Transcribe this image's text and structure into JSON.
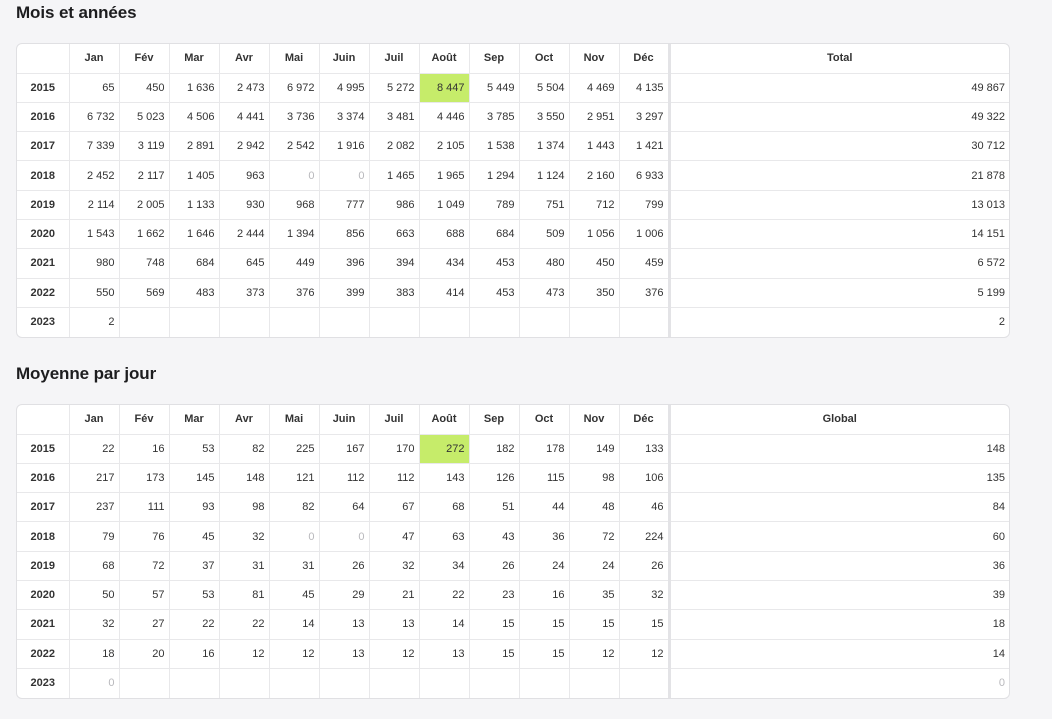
{
  "months": [
    "Jan",
    "Fév",
    "Mar",
    "Avr",
    "Mai",
    "Juin",
    "Juil",
    "Août",
    "Sep",
    "Oct",
    "Nov",
    "Déc"
  ],
  "highlight_color": "#c6ec6a",
  "totals_table": {
    "title": "Mois et années",
    "total_header": "Total",
    "rows": [
      {
        "year": "2015",
        "values": [
          "65",
          "450",
          "1 636",
          "2 473",
          "6 972",
          "4 995",
          "5 272",
          "8 447",
          "5 449",
          "5 504",
          "4 469",
          "4 135"
        ],
        "total": "49 867",
        "highlight": 7
      },
      {
        "year": "2016",
        "values": [
          "6 732",
          "5 023",
          "4 506",
          "4 441",
          "3 736",
          "3 374",
          "3 481",
          "4 446",
          "3 785",
          "3 550",
          "2 951",
          "3 297"
        ],
        "total": "49 322"
      },
      {
        "year": "2017",
        "values": [
          "7 339",
          "3 119",
          "2 891",
          "2 942",
          "2 542",
          "1 916",
          "2 082",
          "2 105",
          "1 538",
          "1 374",
          "1 443",
          "1 421"
        ],
        "total": "30 712"
      },
      {
        "year": "2018",
        "values": [
          "2 452",
          "2 117",
          "1 405",
          "963",
          "0",
          "0",
          "1 465",
          "1 965",
          "1 294",
          "1 124",
          "2 160",
          "6 933"
        ],
        "total": "21 878"
      },
      {
        "year": "2019",
        "values": [
          "2 114",
          "2 005",
          "1 133",
          "930",
          "968",
          "777",
          "986",
          "1 049",
          "789",
          "751",
          "712",
          "799"
        ],
        "total": "13 013"
      },
      {
        "year": "2020",
        "values": [
          "1 543",
          "1 662",
          "1 646",
          "2 444",
          "1 394",
          "856",
          "663",
          "688",
          "684",
          "509",
          "1 056",
          "1 006"
        ],
        "total": "14 151"
      },
      {
        "year": "2021",
        "values": [
          "980",
          "748",
          "684",
          "645",
          "449",
          "396",
          "394",
          "434",
          "453",
          "480",
          "450",
          "459"
        ],
        "total": "6 572"
      },
      {
        "year": "2022",
        "values": [
          "550",
          "569",
          "483",
          "373",
          "376",
          "399",
          "383",
          "414",
          "453",
          "473",
          "350",
          "376"
        ],
        "total": "5 199"
      },
      {
        "year": "2023",
        "values": [
          "2",
          "",
          "",
          "",
          "",
          "",
          "",
          "",
          "",
          "",
          "",
          ""
        ],
        "total": "2"
      }
    ]
  },
  "average_table": {
    "title": "Moyenne par jour",
    "total_header": "Global",
    "rows": [
      {
        "year": "2015",
        "values": [
          "22",
          "16",
          "53",
          "82",
          "225",
          "167",
          "170",
          "272",
          "182",
          "178",
          "149",
          "133"
        ],
        "total": "148",
        "highlight": 7
      },
      {
        "year": "2016",
        "values": [
          "217",
          "173",
          "145",
          "148",
          "121",
          "112",
          "112",
          "143",
          "126",
          "115",
          "98",
          "106"
        ],
        "total": "135"
      },
      {
        "year": "2017",
        "values": [
          "237",
          "111",
          "93",
          "98",
          "82",
          "64",
          "67",
          "68",
          "51",
          "44",
          "48",
          "46"
        ],
        "total": "84"
      },
      {
        "year": "2018",
        "values": [
          "79",
          "76",
          "45",
          "32",
          "0",
          "0",
          "47",
          "63",
          "43",
          "36",
          "72",
          "224"
        ],
        "total": "60"
      },
      {
        "year": "2019",
        "values": [
          "68",
          "72",
          "37",
          "31",
          "31",
          "26",
          "32",
          "34",
          "26",
          "24",
          "24",
          "26"
        ],
        "total": "36"
      },
      {
        "year": "2020",
        "values": [
          "50",
          "57",
          "53",
          "81",
          "45",
          "29",
          "21",
          "22",
          "23",
          "16",
          "35",
          "32"
        ],
        "total": "39"
      },
      {
        "year": "2021",
        "values": [
          "32",
          "27",
          "22",
          "22",
          "14",
          "13",
          "13",
          "14",
          "15",
          "15",
          "15",
          "15"
        ],
        "total": "18"
      },
      {
        "year": "2022",
        "values": [
          "18",
          "20",
          "16",
          "12",
          "12",
          "13",
          "12",
          "13",
          "15",
          "15",
          "12",
          "12"
        ],
        "total": "14"
      },
      {
        "year": "2023",
        "values": [
          "0",
          "",
          "",
          "",
          "",
          "",
          "",
          "",
          "",
          "",
          "",
          ""
        ],
        "total": "0"
      }
    ]
  }
}
